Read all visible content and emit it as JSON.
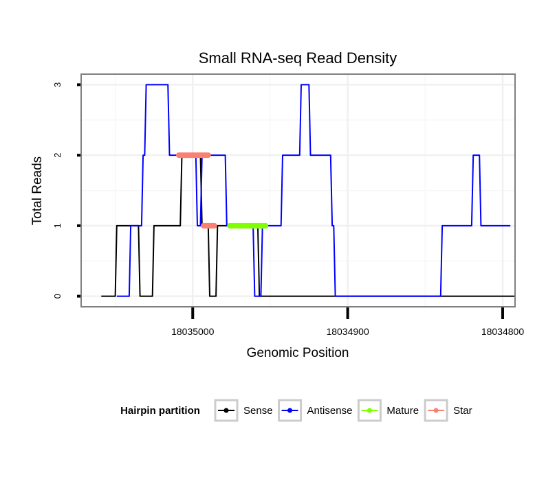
{
  "chart_data": {
    "type": "line",
    "title": "Small RNA-seq Read Density",
    "xlabel": "Genomic Position",
    "ylabel": "Total Reads",
    "x_reversed": true,
    "xlim": [
      18035072,
      18034792
    ],
    "ylim": [
      -0.15,
      3.15
    ],
    "xticks": [
      18035000,
      18034900,
      18034800
    ],
    "xtick_labels": [
      "18035000",
      "18034900",
      "18034800"
    ],
    "yticks": [
      0,
      1,
      2,
      3
    ],
    "ytick_labels": [
      "0",
      "1",
      "2",
      "3"
    ],
    "grid": true,
    "legend": {
      "title": "Hairpin partition",
      "placement": "bottom",
      "entries": [
        {
          "name": "Sense",
          "color": "#000000"
        },
        {
          "name": "Antisense",
          "color": "#0000ff"
        },
        {
          "name": "Mature",
          "color": "#7fff00"
        },
        {
          "name": "Star",
          "color": "#fa8072"
        }
      ]
    },
    "series": [
      {
        "name": "Sense",
        "color": "#000000",
        "x": [
          18035059,
          18035050,
          18035049,
          18035040,
          18035039,
          18035035,
          18035034,
          18035026,
          18035025,
          18035019,
          18035018,
          18035008,
          18035007,
          18034999,
          18034998,
          18034995,
          18034994,
          18034990,
          18034989,
          18034985,
          18034984,
          18034983,
          18034982,
          18034962,
          18034961,
          18034958,
          18034957,
          18034792
        ],
        "y": [
          0,
          0,
          1,
          1,
          1,
          1,
          0,
          0,
          1,
          1,
          1,
          1,
          2,
          2,
          2,
          2,
          1,
          1,
          0,
          0,
          1,
          1,
          1,
          1,
          1,
          1,
          0,
          0
        ]
      },
      {
        "name": "Antisense",
        "color": "#0000ff",
        "x": [
          18035049,
          18035041,
          18035040,
          18035033,
          18035032,
          18035031,
          18035030,
          18035016,
          18035015,
          18035010,
          18035009,
          18035000,
          18034999,
          18034998,
          18034997,
          18034995,
          18034994,
          18034984,
          18034983,
          18034979,
          18034978,
          18034961,
          18034960,
          18034956,
          18034955,
          18034943,
          18034942,
          18034931,
          18034930,
          18034925,
          18034924,
          18034911,
          18034910,
          18034909,
          18034908,
          18034840,
          18034839,
          18034820,
          18034819,
          18034815,
          18034814,
          18034795
        ],
        "y": [
          0,
          0,
          1,
          1,
          2,
          2,
          3,
          3,
          2,
          2,
          2,
          2,
          2,
          2,
          1,
          1,
          2,
          2,
          2,
          2,
          1,
          1,
          0,
          0,
          1,
          1,
          2,
          2,
          3,
          3,
          2,
          2,
          1,
          1,
          0,
          0,
          1,
          1,
          2,
          2,
          1,
          1
        ]
      },
      {
        "name": "Mature",
        "color": "#7fff00",
        "x": [
          18034976,
          18034953
        ],
        "y": [
          1,
          1
        ]
      },
      {
        "name": "Star",
        "color": "#fa8072",
        "x": [
          18035009,
          18034990,
          18034993,
          18034986
        ],
        "y": [
          2,
          2,
          1,
          1
        ],
        "segments": [
          [
            0,
            1
          ],
          [
            2,
            3
          ]
        ]
      }
    ]
  },
  "colors": {
    "panel_border": "#7f7f7f",
    "grid_major": "#f0f0f0",
    "grid_minor": "#f7f7f7",
    "legend_key_border": "#cccccc"
  }
}
